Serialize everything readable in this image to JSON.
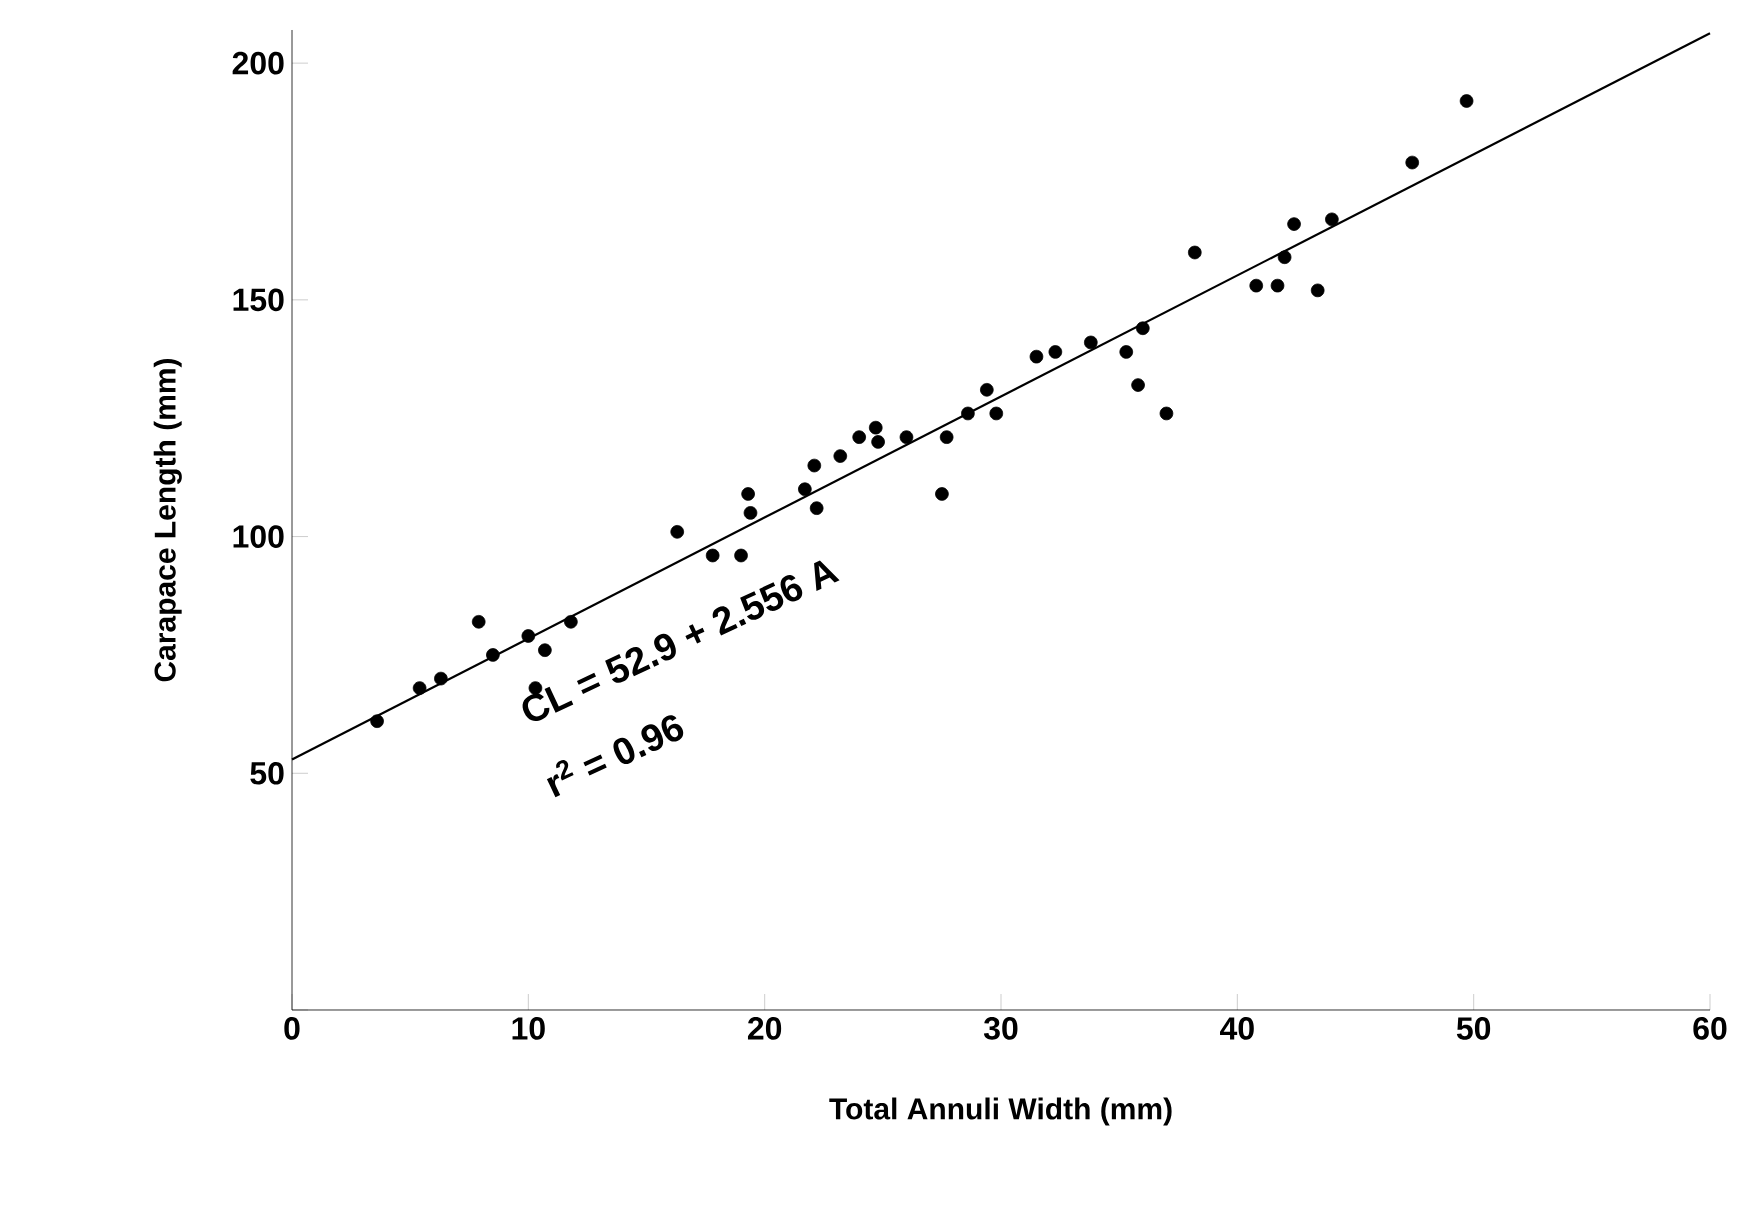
{
  "chart_data": {
    "type": "scatter",
    "xlabel": "Total Annuli Width  (mm)",
    "ylabel": "Carapace Length  (mm)",
    "xlim": [
      0,
      60
    ],
    "ylim": [
      0,
      207
    ],
    "xticks": [
      0,
      10,
      20,
      30,
      40,
      50,
      60
    ],
    "yticks": [
      {
        "value": 0,
        "label": null
      },
      50,
      100,
      150,
      200
    ],
    "annotations": [
      "CL = 52.9 + 2.556 A",
      "r$^{2}$ = 0.96"
    ],
    "series": [
      {
        "color": "#000000",
        "marker": "circle",
        "x": [
          3.6,
          5.4,
          6.3,
          7.9,
          8.5,
          10.0,
          10.3,
          10.7,
          11.8,
          16.3,
          17.8,
          19.0,
          19.3,
          19.4,
          21.7,
          22.1,
          22.2,
          23.2,
          24.0,
          24.7,
          24.8,
          26.0,
          27.5,
          27.7,
          28.6,
          29.4,
          29.8,
          31.5,
          32.3,
          33.8,
          35.3,
          36.0,
          35.8,
          37.0,
          38.2,
          40.8,
          41.7,
          42.0,
          42.4,
          43.4,
          44.0,
          47.4,
          49.7
        ],
        "values": [
          61,
          68,
          70,
          82,
          75,
          79,
          68,
          76,
          82,
          101,
          96,
          96,
          109,
          105,
          110,
          115,
          106,
          117,
          121,
          123,
          120,
          121,
          109,
          121,
          126,
          131,
          126,
          138,
          139,
          141,
          139,
          144,
          132,
          126,
          160,
          153,
          153,
          159,
          166,
          152,
          167,
          179,
          192
        ]
      },
      {
        "type": "line",
        "color": "#000000",
        "marker": "none",
        "line_style": "solid",
        "x": [
          0,
          60
        ],
        "values": [
          52.9,
          206.3
        ]
      }
    ]
  }
}
